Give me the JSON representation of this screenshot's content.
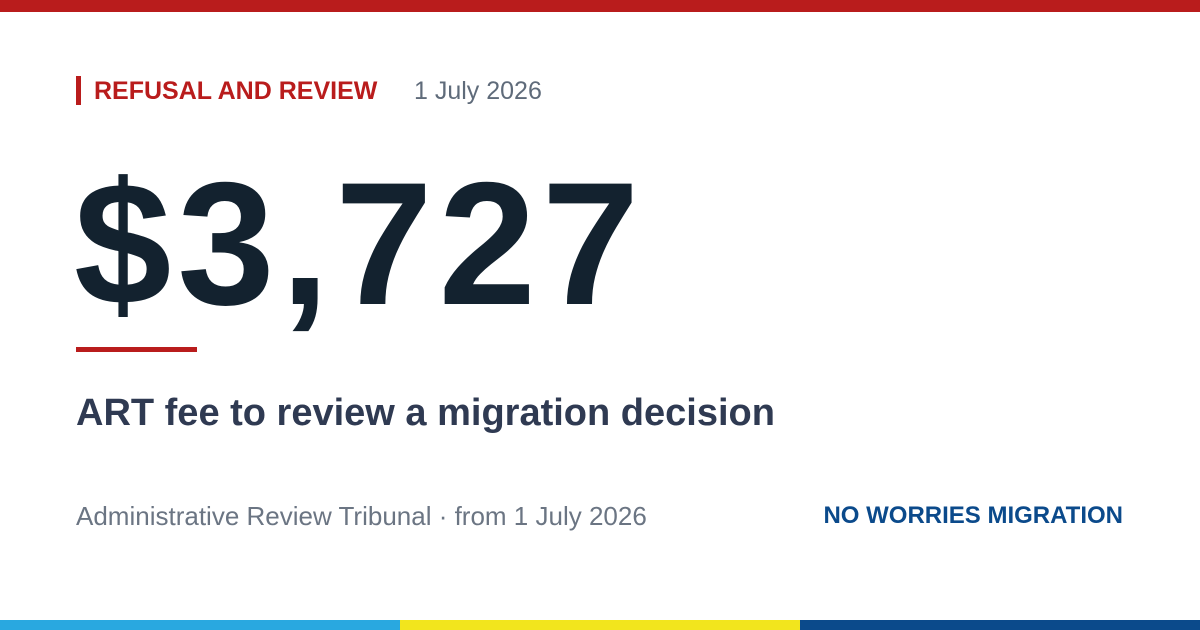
{
  "header": {
    "category": "REFUSAL AND REVIEW",
    "date": "1 July 2026"
  },
  "headline": {
    "amount": "$3,727",
    "description": "ART fee to review a migration decision"
  },
  "footer": {
    "source": "Administrative Review Tribunal · from 1 July 2026",
    "brand": "NO WORRIES MIGRATION"
  }
}
